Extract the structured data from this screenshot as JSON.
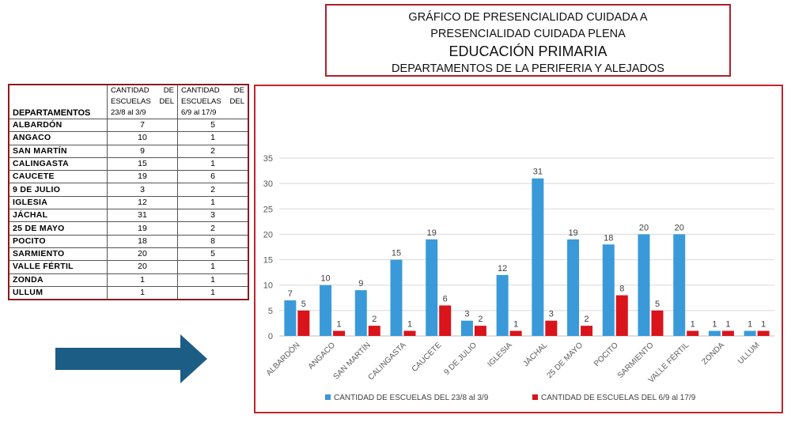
{
  "title": {
    "line1": "GRÁFICO DE PRESENCIALIDAD CUIDADA A",
    "line2": "PRESENCIALIDAD CUIDADA PLENA",
    "line3": "EDUCACIÓN PRIMARIA",
    "line4": "DEPARTAMENTOS DE LA PERIFERIA Y ALEJADOS"
  },
  "table": {
    "col_dept": "DEPARTAMENTOS",
    "col_a": "CANTIDAD DE ESCUELAS DEL 23/8 al 3/9",
    "col_b": "CANTIDAD DE ESCUELAS DEL 6/9 al 17/9",
    "rows": [
      {
        "name": "ALBARDÓN",
        "a": "7",
        "b": "5"
      },
      {
        "name": "ANGACO",
        "a": "10",
        "b": "1"
      },
      {
        "name": "SAN MARTÍN",
        "a": "9",
        "b": "2"
      },
      {
        "name": "CALINGASTA",
        "a": "15",
        "b": "1"
      },
      {
        "name": "CAUCETE",
        "a": "19",
        "b": "6"
      },
      {
        "name": "9 DE JULIO",
        "a": "3",
        "b": "2"
      },
      {
        "name": "IGLESIA",
        "a": "12",
        "b": "1"
      },
      {
        "name": "JÁCHAL",
        "a": "31",
        "b": "3"
      },
      {
        "name": "25 DE MAYO",
        "a": "19",
        "b": "2"
      },
      {
        "name": "POCITO",
        "a": "18",
        "b": "8"
      },
      {
        "name": "SARMIENTO",
        "a": "20",
        "b": "5"
      },
      {
        "name": "VALLE FÉRTIL",
        "a": "20",
        "b": "1"
      },
      {
        "name": "ZONDA",
        "a": "1",
        "b": "1"
      },
      {
        "name": "ULLUM",
        "a": "1",
        "b": "1"
      }
    ]
  },
  "colors": {
    "series_a": "#3a9ad9",
    "series_b": "#d9141b",
    "arrow": "#1c5d86",
    "frame": "#c0242e"
  },
  "icons": {
    "arrow": "right-arrow-icon"
  },
  "chart_data": {
    "type": "bar",
    "categories": [
      "ALBARDÓN",
      "ANGACO",
      "SAN MARTÍN",
      "CALINGASTA",
      "CAUCETE",
      "9 DE JULIO",
      "IGLESIA",
      "JÁCHAL",
      "25 DE MAYO",
      "POCITO",
      "SARMIENTO",
      "VALLE FÉRTIL",
      "ZONDA",
      "ULLUM"
    ],
    "series": [
      {
        "name": "CANTIDAD DE ESCUELAS DEL 23/8 al 3/9",
        "values": [
          7,
          10,
          9,
          15,
          19,
          3,
          12,
          31,
          19,
          18,
          20,
          20,
          1,
          1
        ]
      },
      {
        "name": "CANTIDAD DE ESCUELAS DEL 6/9 al 17/9",
        "values": [
          5,
          1,
          2,
          1,
          6,
          2,
          1,
          3,
          2,
          8,
          5,
          1,
          1,
          1
        ]
      }
    ],
    "yticks": [
      "0",
      "5",
      "10",
      "15",
      "20",
      "25",
      "30",
      "35"
    ],
    "ylim": [
      0,
      35
    ],
    "grid": true,
    "legend": "bottom"
  }
}
